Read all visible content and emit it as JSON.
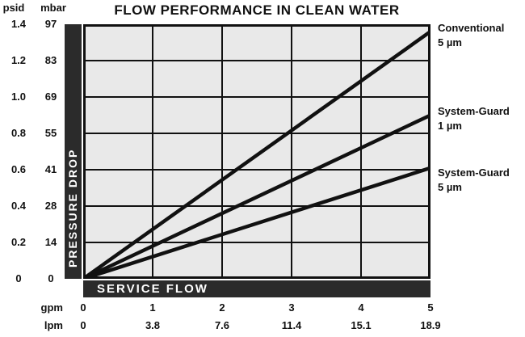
{
  "title": "FLOW PERFORMANCE IN CLEAN WATER",
  "colors": {
    "grid_bg": "#e9e9e9",
    "ink": "#111111",
    "bar_bg": "#2b2b2b",
    "bar_text": "#ffffff"
  },
  "y_axis": {
    "unit_psid": "psid",
    "unit_mbar": "mbar",
    "psid_ticks": [
      "1.4",
      "1.2",
      "1.0",
      "0.8",
      "0.6",
      "0.4",
      "0.2",
      "0"
    ],
    "mbar_ticks": [
      "97",
      "83",
      "69",
      "55",
      "41",
      "28",
      "14",
      "0"
    ],
    "bar_label": "PRESSURE DROP"
  },
  "x_axis": {
    "bar_label": "SERVICE FLOW",
    "gpm_header": "gpm",
    "lpm_header": "lpm",
    "gpm_ticks": [
      "0",
      "1",
      "2",
      "3",
      "4",
      "5"
    ],
    "lpm_ticks": [
      "0",
      "3.8",
      "7.6",
      "11.4",
      "15.1",
      "18.9"
    ]
  },
  "series_labels": [
    {
      "line1": "Conventional",
      "line2": "5 µm"
    },
    {
      "line1": "System-Guard",
      "line2": "1 µm"
    },
    {
      "line1": "System-Guard",
      "line2": "5 µm"
    }
  ],
  "chart_data": {
    "type": "line",
    "title": "FLOW PERFORMANCE IN CLEAN WATER",
    "xlabel": "SERVICE FLOW",
    "ylabel": "PRESSURE DROP",
    "x_units": [
      "gpm",
      "lpm"
    ],
    "y_units": [
      "psid",
      "mbar"
    ],
    "xlim_gpm": [
      0,
      5
    ],
    "xlim_lpm": [
      0,
      18.9
    ],
    "ylim_psid": [
      0,
      1.4
    ],
    "ylim_mbar": [
      0,
      97
    ],
    "x_ticks_gpm": [
      0,
      1,
      2,
      3,
      4,
      5
    ],
    "x_ticks_lpm": [
      0,
      3.8,
      7.6,
      11.4,
      15.1,
      18.9
    ],
    "y_ticks_psid": [
      0,
      0.2,
      0.4,
      0.6,
      0.8,
      1.0,
      1.2,
      1.4
    ],
    "y_ticks_mbar": [
      0,
      14,
      28,
      41,
      55,
      69,
      83,
      97
    ],
    "grid": true,
    "legend_position": "right-outside",
    "series": [
      {
        "name": "Conventional 5 µm",
        "x_gpm": [
          0,
          5
        ],
        "y_psid": [
          0,
          1.36
        ]
      },
      {
        "name": "System-Guard 1 µm",
        "x_gpm": [
          0,
          5
        ],
        "y_psid": [
          0,
          0.9
        ]
      },
      {
        "name": "System-Guard 5 µm",
        "x_gpm": [
          0,
          5
        ],
        "y_psid": [
          0,
          0.61
        ]
      }
    ]
  }
}
